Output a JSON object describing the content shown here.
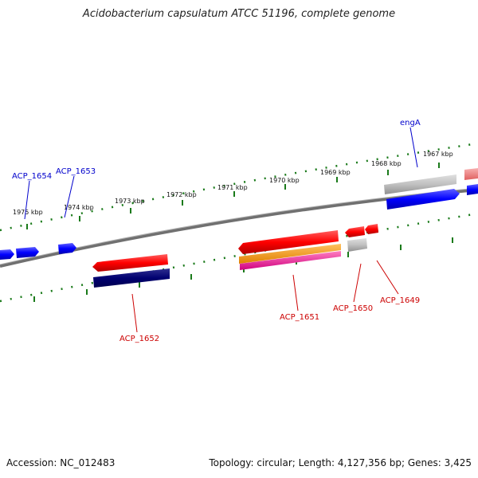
{
  "title": "Acidobacterium capsulatum ATCC 51196, complete genome",
  "footer": {
    "accession": "Accession: NC_012483",
    "topology": "Topology: circular; Length: 4,127,356 bp; Genes: 3,425"
  },
  "ticks": [
    {
      "label": "1975 kbp"
    },
    {
      "label": "1974 kbp"
    },
    {
      "label": "1973 kbp"
    },
    {
      "label": "1972 kbp"
    },
    {
      "label": "1971 kbp"
    },
    {
      "label": "1970 kbp"
    },
    {
      "label": "1969 kbp"
    },
    {
      "label": "1968 kbp"
    },
    {
      "label": "1967 kbp"
    }
  ],
  "gene_labels": {
    "acp1654": "ACP_1654",
    "acp1653": "ACP_1653",
    "enga": "engA",
    "acp1652": "ACP_1652",
    "acp1651": "ACP_1651",
    "acp1650": "ACP_1650",
    "acp1649": "ACP_1649"
  },
  "colors": {
    "forward": "#0000ff",
    "reverse": "#ff0000",
    "backbone": "#808080",
    "tick": "#1a7a1a",
    "navy": "#000080",
    "orange": "#ff9900",
    "magenta": "#ff33aa",
    "gray_feature": "#c0c0c0",
    "pink": "#f08080"
  }
}
